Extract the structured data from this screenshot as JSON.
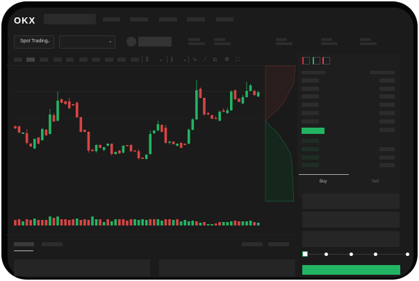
{
  "header": {
    "logo": "OKX"
  },
  "toolbar": {
    "market_select": "Spot Trading"
  },
  "trade_panel": {
    "tabs": [
      {
        "label": "Buy",
        "active": true
      },
      {
        "label": "Sell",
        "active": false
      }
    ],
    "slider_level": 0
  },
  "colors": {
    "up": "#23b463",
    "down": "#d84545",
    "background": "#1b1b1b",
    "accent": "#23b463"
  },
  "icons": [
    "chevron-down-icon",
    "candle-icon",
    "indicator-icon",
    "ruler-icon",
    "camera-icon",
    "gear-icon",
    "fullscreen-icon",
    "orderbook-both-icon",
    "orderbook-bids-icon",
    "orderbook-asks-icon"
  ],
  "chart_data": {
    "type": "candlestick",
    "candles": [
      [
        68,
        69,
        64,
        65
      ],
      [
        68,
        69,
        58,
        59
      ],
      [
        57,
        59,
        57,
        59
      ],
      [
        58,
        64,
        42,
        44
      ],
      [
        43,
        44,
        38,
        39
      ],
      [
        36,
        50,
        35,
        50
      ],
      [
        52,
        52,
        42,
        43
      ],
      [
        48,
        66,
        47,
        64
      ],
      [
        63,
        64,
        54,
        55
      ],
      [
        57,
        93,
        56,
        85
      ],
      [
        84,
        87,
        74,
        75
      ],
      [
        76,
        118,
        75,
        105
      ],
      [
        107,
        108,
        101,
        102
      ],
      [
        104,
        105,
        99,
        100
      ],
      [
        104,
        109,
        93,
        94
      ],
      [
        100,
        100,
        98,
        98
      ],
      [
        102,
        104,
        80,
        81
      ],
      [
        81,
        82,
        59,
        60
      ],
      [
        63,
        63,
        59,
        60
      ],
      [
        60,
        61,
        30,
        33
      ],
      [
        34,
        36,
        32,
        32
      ],
      [
        32,
        42,
        30,
        41
      ],
      [
        41,
        42,
        36,
        37
      ],
      [
        34,
        38,
        32,
        38
      ],
      [
        40,
        43,
        39,
        43
      ],
      [
        43,
        43,
        26,
        28
      ],
      [
        28,
        32,
        27,
        31
      ],
      [
        33,
        34,
        28,
        29
      ],
      [
        30,
        41,
        29,
        40
      ],
      [
        41,
        41,
        39,
        40
      ],
      [
        41,
        42,
        31,
        32
      ],
      [
        33,
        34,
        32,
        32
      ],
      [
        32,
        35,
        20,
        22
      ],
      [
        23,
        23,
        21,
        21
      ],
      [
        21,
        28,
        20,
        27
      ],
      [
        28,
        62,
        27,
        57
      ],
      [
        58,
        62,
        57,
        62
      ],
      [
        62,
        76,
        61,
        71
      ],
      [
        70,
        71,
        59,
        60
      ],
      [
        66,
        70,
        43,
        44
      ],
      [
        45,
        47,
        42,
        46
      ],
      [
        46,
        46,
        42,
        42
      ],
      [
        40,
        43,
        39,
        43
      ],
      [
        44,
        45,
        36,
        37
      ],
      [
        43,
        43,
        41,
        41
      ],
      [
        43,
        65,
        42,
        63
      ],
      [
        63,
        80,
        62,
        78
      ],
      [
        78,
        135,
        77,
        120
      ],
      [
        122,
        124,
        108,
        109
      ],
      [
        109,
        109,
        83,
        85
      ],
      [
        87,
        89,
        84,
        85
      ],
      [
        84,
        85,
        78,
        79
      ],
      [
        80,
        83,
        79,
        79
      ],
      [
        76,
        91,
        75,
        89
      ],
      [
        91,
        94,
        88,
        89
      ],
      [
        87,
        95,
        86,
        91
      ],
      [
        91,
        120,
        90,
        118
      ],
      [
        120,
        121,
        106,
        107
      ],
      [
        108,
        108,
        103,
        103
      ],
      [
        101,
        113,
        100,
        110
      ],
      [
        110,
        132,
        109,
        119
      ],
      [
        119,
        129,
        118,
        127
      ],
      [
        119,
        121,
        112,
        113
      ],
      [
        111,
        119,
        110,
        117
      ]
    ],
    "volume": [
      8,
      9,
      6,
      9,
      8,
      10,
      8,
      8,
      8,
      13,
      11,
      13,
      9,
      9,
      8,
      9,
      10,
      8,
      9,
      8,
      13,
      9,
      9,
      5,
      9,
      6,
      9,
      9,
      9,
      7,
      9,
      9,
      8,
      9,
      8,
      9,
      9,
      9,
      7,
      9,
      9,
      8,
      9,
      6,
      8,
      6,
      7,
      6,
      4,
      5,
      2,
      2,
      3,
      5,
      5,
      5,
      6,
      7,
      6,
      6,
      6,
      7,
      5,
      4
    ],
    "volume_up": [
      false,
      false,
      true,
      false,
      false,
      true,
      false,
      false,
      false,
      true,
      false,
      true,
      false,
      false,
      false,
      false,
      true,
      false,
      false,
      false,
      true,
      true,
      false,
      true,
      false,
      true,
      true,
      false,
      false,
      false,
      false,
      true,
      true,
      true,
      true,
      false,
      false,
      true,
      true,
      false,
      false,
      true,
      false,
      true,
      true,
      true,
      true,
      false,
      true,
      false,
      true,
      true,
      false,
      false,
      true,
      true,
      true,
      false,
      false,
      true,
      true,
      true,
      false,
      true
    ]
  }
}
